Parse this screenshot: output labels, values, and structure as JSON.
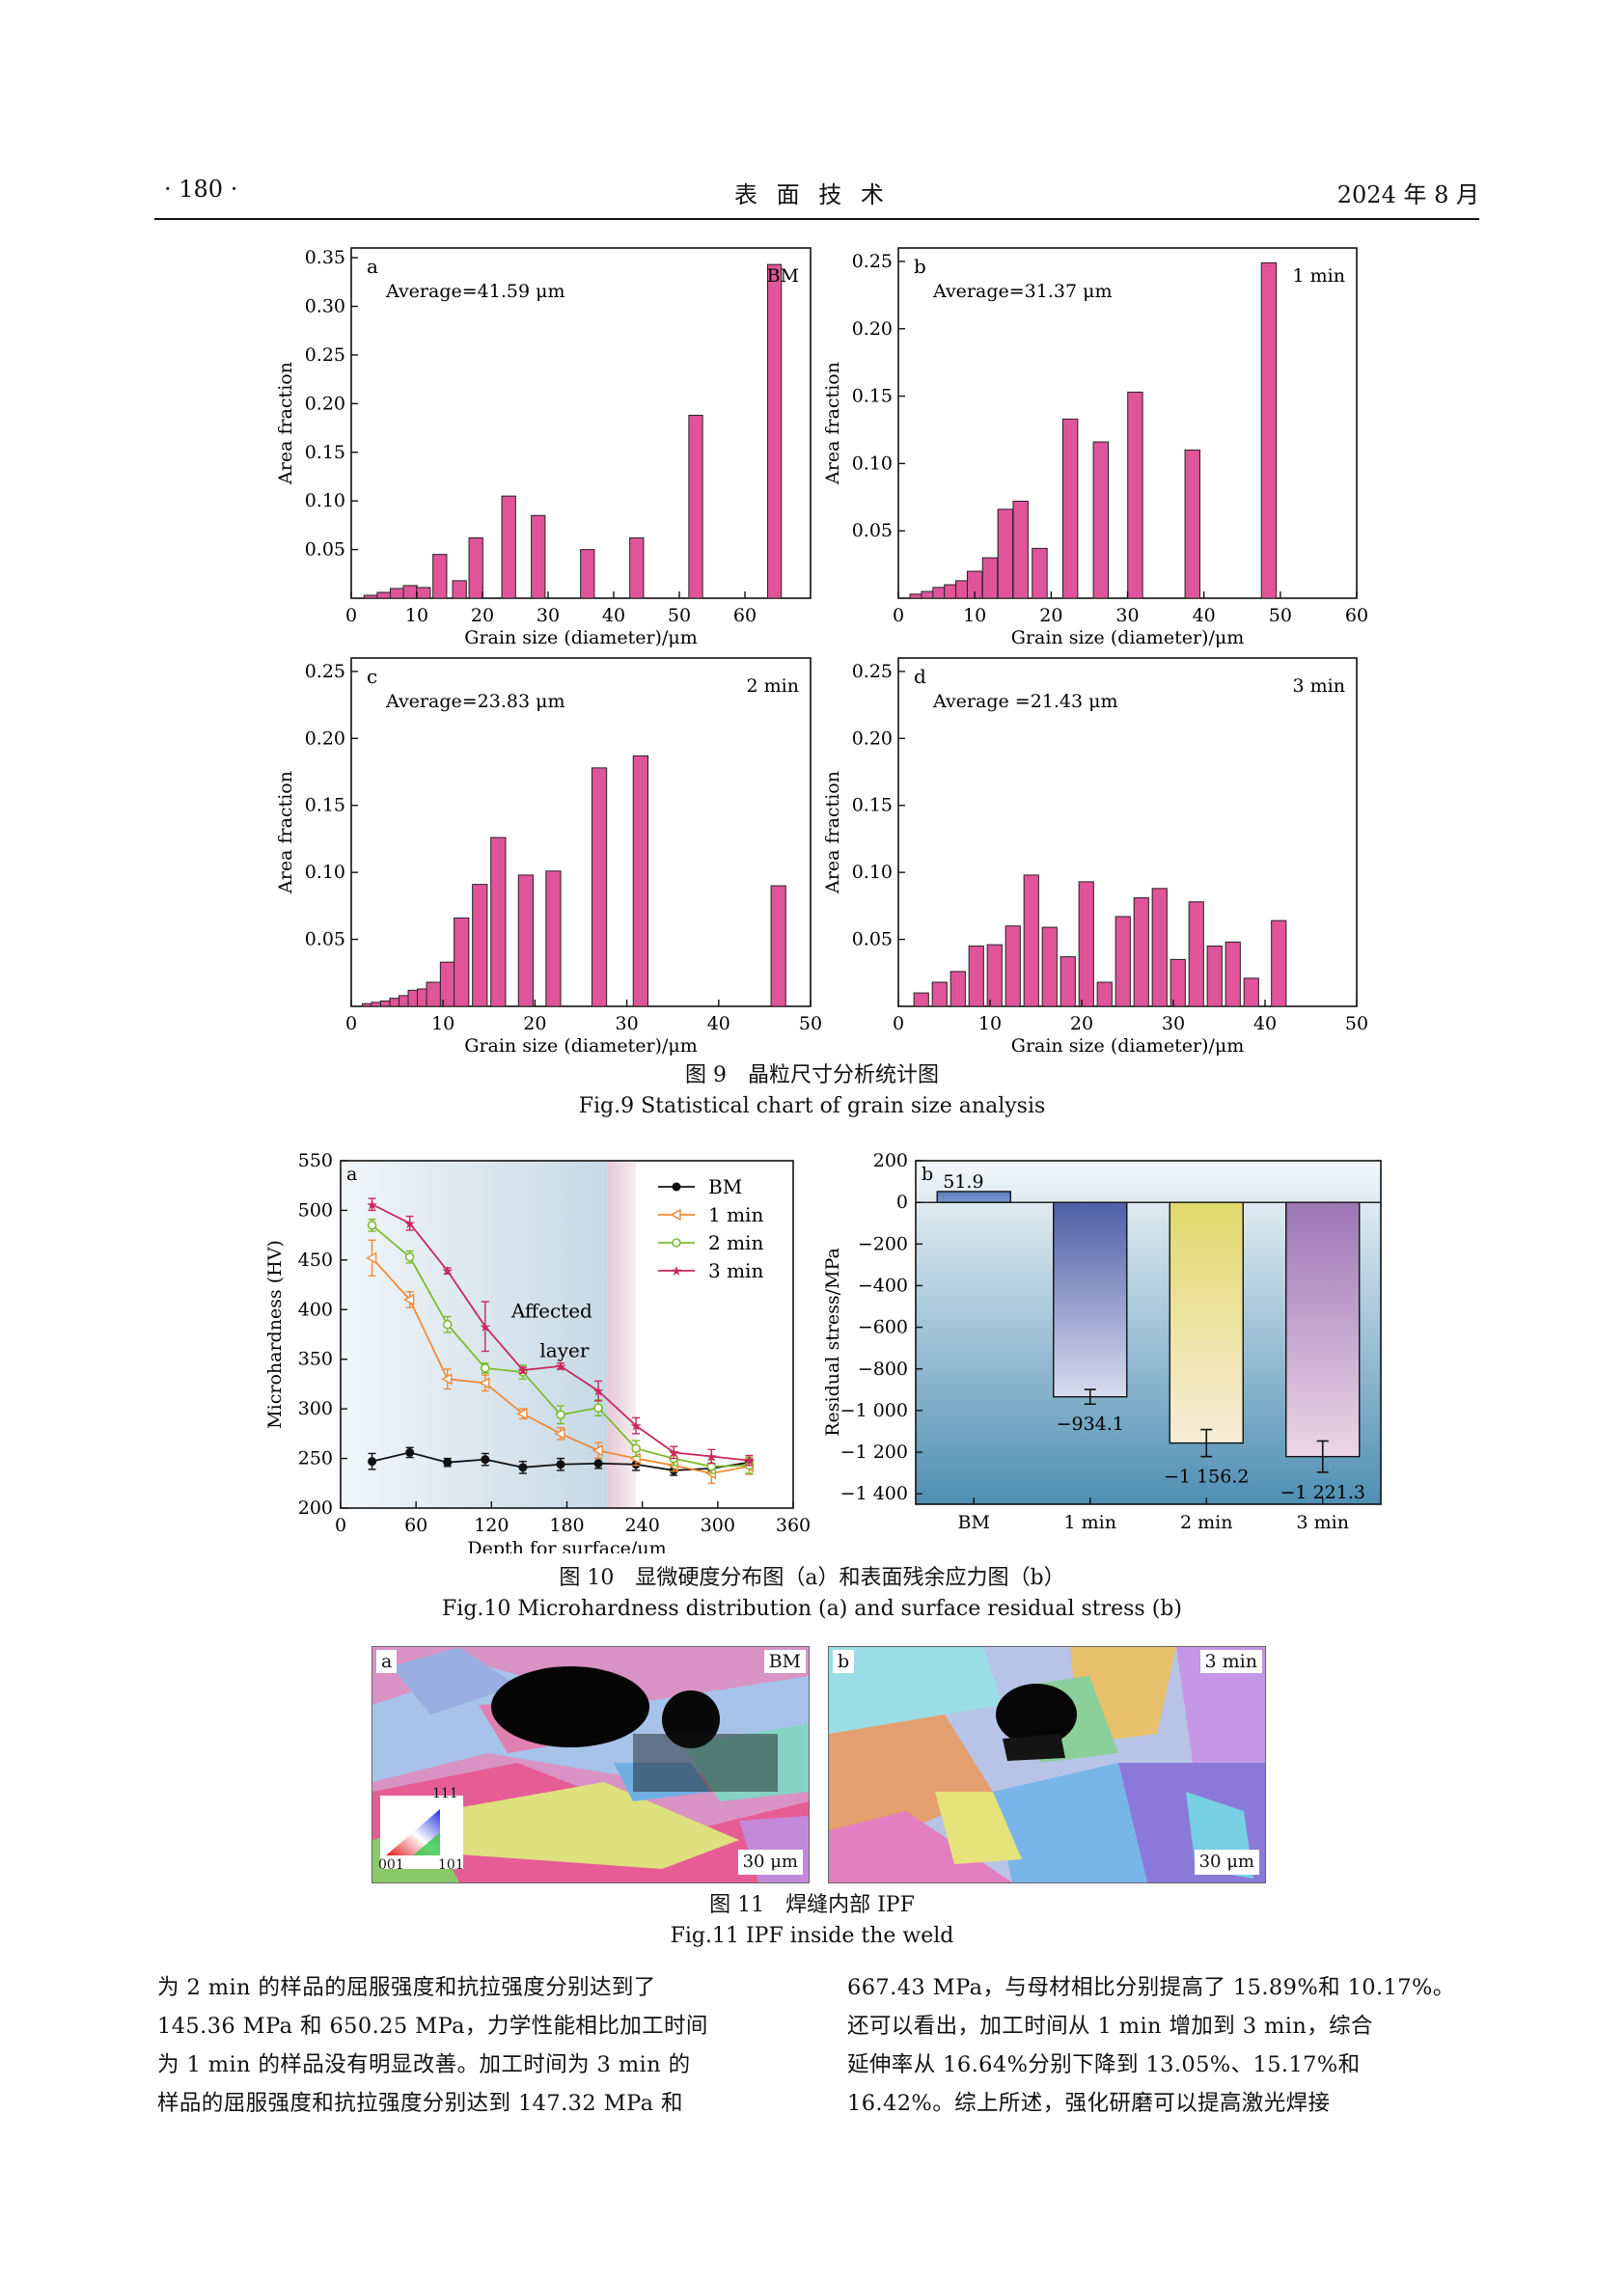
{
  "header": {
    "page_number": "· 180 ·",
    "journal": "表 面 技 术",
    "date": "2024 年 8 月"
  },
  "fig9": {
    "caption_cn": "图 9　晶粒尺寸分析统计图",
    "caption_en": "Fig.9 Statistical chart of grain size analysis"
  },
  "fig10": {
    "caption_cn": "图 10　显微硬度分布图（a）和表面残余应力图（b）",
    "caption_en": "Fig.10 Microhardness distribution (a) and surface residual stress (b)"
  },
  "fig11": {
    "caption_cn": "图 11　焊缝内部 IPF",
    "caption_en": "Fig.11 IPF inside the weld",
    "panels": [
      {
        "letter": "a",
        "tag": "BM",
        "scale": "30 μm"
      },
      {
        "letter": "b",
        "tag": "3 min",
        "scale": "30 μm"
      }
    ],
    "legend": {
      "top": "111",
      "left": "001",
      "right": "101"
    }
  },
  "text": {
    "left": [
      "为 2 min 的样品的屈服强度和抗拉强度分别达到了",
      "145.36 MPa 和 650.25 MPa，力学性能相比加工时间",
      "为 1 min 的样品没有明显改善。加工时间为 3 min 的",
      "样品的屈服强度和抗拉强度分别达到 147.32 MPa 和"
    ],
    "right": [
      "667.43 MPa，与母材相比分别提高了 15.89%和 10.17%。",
      "还可以看出，加工时间从 1 min 增加到 3 min，综合",
      "延伸率从 16.64%分别下降到 13.05%、15.17%和",
      "16.42%。综上所述，强化研磨可以提高激光焊接"
    ]
  },
  "colors": {
    "bar": "#e0549a",
    "bm": "#111111",
    "min1": "#f08a36",
    "min2": "#7dbb2e",
    "min3": "#c8285e"
  },
  "chart_data": [
    {
      "type": "bar",
      "panel": "a",
      "tag": "BM",
      "annotation": "Average=41.59 μm",
      "xlabel": "Grain size (diameter)/μm",
      "ylabel": "Area fraction",
      "xlim": [
        0,
        70
      ],
      "ylim": [
        0,
        0.36
      ],
      "xticks": [
        0,
        10,
        20,
        30,
        40,
        50,
        60
      ],
      "yticks": [
        0.05,
        0.1,
        0.15,
        0.2,
        0.25,
        0.3,
        0.35
      ],
      "ytick_labels": [
        "0.05",
        "0.10",
        "0.15",
        "0.20",
        "0.25",
        "0.30",
        "0.35"
      ],
      "x": [
        3,
        5,
        7,
        9,
        11,
        13.5,
        16.5,
        19,
        24,
        28.5,
        36,
        43.5,
        52.5,
        64.5
      ],
      "values": [
        0.003,
        0.006,
        0.01,
        0.013,
        0.011,
        0.045,
        0.018,
        0.062,
        0.105,
        0.085,
        0.05,
        0.062,
        0.188,
        0.343
      ]
    },
    {
      "type": "bar",
      "panel": "b",
      "tag": "1 min",
      "annotation": "Average=31.37 μm",
      "xlabel": "Grain size (diameter)/μm",
      "ylabel": "Area fraction",
      "xlim": [
        0,
        60
      ],
      "ylim": [
        0,
        0.26
      ],
      "xticks": [
        0,
        10,
        20,
        30,
        40,
        50,
        60
      ],
      "yticks": [
        0.05,
        0.1,
        0.15,
        0.2,
        0.25
      ],
      "ytick_labels": [
        "0.05",
        "0.10",
        "0.15",
        "0.20",
        "0.25"
      ],
      "x": [
        2.5,
        4,
        5.5,
        7,
        8.5,
        10,
        12,
        14,
        16,
        18.5,
        22.5,
        26.5,
        31,
        38.5,
        48.5
      ],
      "values": [
        0.003,
        0.005,
        0.008,
        0.01,
        0.013,
        0.02,
        0.03,
        0.066,
        0.072,
        0.037,
        0.133,
        0.116,
        0.153,
        0.11,
        0.249
      ]
    },
    {
      "type": "bar",
      "panel": "c",
      "tag": "2 min",
      "annotation": "Average=23.83 μm",
      "xlabel": "Grain size (diameter)/μm",
      "ylabel": "Area fraction",
      "xlim": [
        0,
        50
      ],
      "ylim": [
        0,
        0.26
      ],
      "xticks": [
        0,
        10,
        20,
        30,
        40,
        50
      ],
      "yticks": [
        0.05,
        0.1,
        0.15,
        0.2,
        0.25
      ],
      "ytick_labels": [
        "0.05",
        "0.10",
        "0.15",
        "0.20",
        "0.25"
      ],
      "x": [
        2,
        3,
        4,
        5,
        6,
        7,
        8,
        9,
        10.5,
        12,
        14,
        16,
        19,
        22,
        27,
        31.5,
        46.5
      ],
      "values": [
        0.002,
        0.003,
        0.004,
        0.006,
        0.008,
        0.012,
        0.013,
        0.018,
        0.033,
        0.066,
        0.091,
        0.126,
        0.098,
        0.101,
        0.178,
        0.187,
        0.09
      ]
    },
    {
      "type": "bar",
      "panel": "d",
      "tag": "3 min",
      "annotation": "Average =21.43 μm",
      "xlabel": "Grain size (diameter)/μm",
      "ylabel": "Area fraction",
      "xlim": [
        0,
        50
      ],
      "ylim": [
        0,
        0.26
      ],
      "xticks": [
        0,
        10,
        20,
        30,
        40,
        50
      ],
      "yticks": [
        0.05,
        0.1,
        0.15,
        0.2,
        0.25
      ],
      "ytick_labels": [
        "0.05",
        "0.10",
        "0.15",
        "0.20",
        "0.25"
      ],
      "x": [
        2.5,
        4.5,
        6.5,
        8.5,
        10.5,
        12.5,
        14.5,
        16.5,
        18.5,
        20.5,
        22.5,
        24.5,
        26.5,
        28.5,
        30.5,
        32.5,
        34.5,
        36.5,
        38.5,
        41.5
      ],
      "values": [
        0.01,
        0.018,
        0.026,
        0.045,
        0.046,
        0.06,
        0.098,
        0.059,
        0.037,
        0.093,
        0.018,
        0.067,
        0.081,
        0.088,
        0.035,
        0.078,
        0.045,
        0.048,
        0.021,
        0.064
      ]
    },
    {
      "type": "line",
      "panel": "a",
      "xlabel": "Depth for surface/μm",
      "ylabel": "Microhardness (HV)",
      "xlim": [
        0,
        360
      ],
      "ylim": [
        200,
        550
      ],
      "xticks": [
        0,
        60,
        120,
        180,
        240,
        300,
        360
      ],
      "yticks": [
        200,
        250,
        300,
        350,
        400,
        450,
        500,
        550
      ],
      "annotation": [
        "Affected",
        "layer"
      ],
      "affected_layer": [
        0,
        235
      ],
      "x": [
        25,
        55,
        85,
        115,
        145,
        175,
        205,
        235,
        265,
        295,
        325
      ],
      "series": [
        {
          "name": "BM",
          "values": [
            247,
            256,
            246,
            249,
            241,
            244,
            245,
            244,
            238,
            240,
            246
          ],
          "err": [
            8,
            5,
            4,
            6,
            6,
            6,
            5,
            6,
            5,
            5,
            5
          ]
        },
        {
          "name": "1 min",
          "values": [
            452,
            410,
            330,
            326,
            295,
            275,
            258,
            250,
            243,
            235,
            242
          ],
          "err": [
            18,
            8,
            10,
            8,
            5,
            6,
            8,
            7,
            6,
            10,
            8
          ]
        },
        {
          "name": "2 min",
          "values": [
            485,
            453,
            385,
            341,
            337,
            294,
            301,
            260,
            250,
            242,
            243
          ],
          "err": [
            6,
            6,
            8,
            5,
            7,
            9,
            8,
            8,
            7,
            7,
            8
          ]
        },
        {
          "name": "3 min",
          "values": [
            506,
            487,
            439,
            383,
            339,
            343,
            318,
            283,
            256,
            252,
            248
          ],
          "err": [
            6,
            7,
            3,
            25,
            3,
            3,
            10,
            8,
            6,
            7,
            5
          ]
        }
      ]
    },
    {
      "type": "bar",
      "panel": "b",
      "xlabel": "",
      "ylabel": "Residual  stress/MPa",
      "ylim": [
        -1450,
        200
      ],
      "yticks": [
        200,
        0,
        -200,
        -400,
        -600,
        -800,
        -1000,
        -1200,
        -1400
      ],
      "ytick_labels": [
        "200",
        "0",
        "−200",
        "−400",
        "−600",
        "−800",
        "−1 000",
        "−1 200",
        "−1 400"
      ],
      "categories": [
        "BM",
        "1 min",
        "2 min",
        "3 min"
      ],
      "values": [
        51.9,
        -934.1,
        -1156.2,
        -1221.3
      ],
      "value_labels": [
        "51.9",
        "−934.1",
        "−1 156.2",
        "−1 221.3"
      ],
      "err": [
        0,
        35,
        65,
        75
      ],
      "bar_colors": [
        "#5b7ec0",
        "#5c6aa6",
        "#e8e07e",
        "#a888c0"
      ]
    }
  ]
}
